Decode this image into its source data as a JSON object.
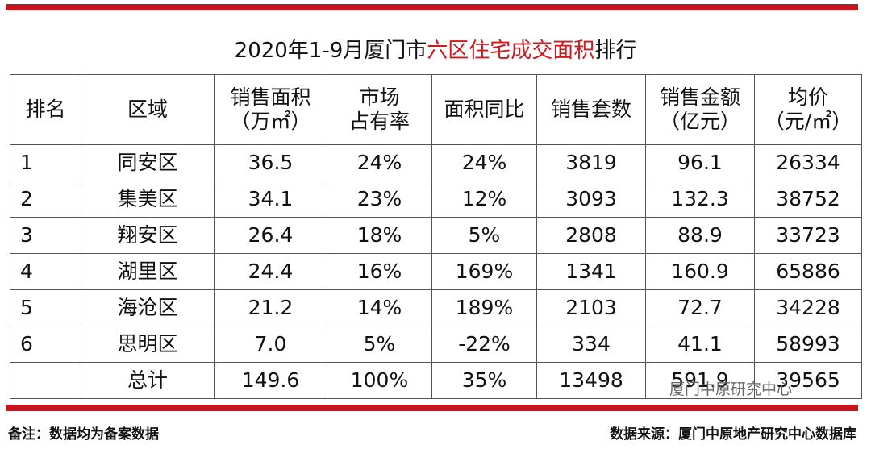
{
  "title": {
    "prefix": "2020年1-9月厦门市",
    "highlight": "六区住宅成交面积",
    "suffix": "排行"
  },
  "table": {
    "header": [
      [
        "排名"
      ],
      [
        "区域"
      ],
      [
        "销售面积",
        "（万㎡）"
      ],
      [
        "市场",
        "占有率"
      ],
      [
        "面积同比"
      ],
      [
        "销售套数"
      ],
      [
        "销售金额",
        "（亿元）"
      ],
      [
        "均价",
        "（元/㎡）"
      ]
    ],
    "rows": [
      [
        "1",
        "同安区",
        "36.5",
        "24%",
        "24%",
        "3819",
        "96.1",
        "26334"
      ],
      [
        "2",
        "集美区",
        "34.1",
        "23%",
        "12%",
        "3093",
        "132.3",
        "38752"
      ],
      [
        "3",
        "翔安区",
        "26.4",
        "18%",
        "5%",
        "2808",
        "88.9",
        "33723"
      ],
      [
        "4",
        "湖里区",
        "24.4",
        "16%",
        "169%",
        "1341",
        "160.9",
        "65886"
      ],
      [
        "5",
        "海沧区",
        "21.2",
        "14%",
        "189%",
        "2103",
        "72.7",
        "34228"
      ],
      [
        "6",
        "思明区",
        "7.0",
        "5%",
        "-22%",
        "334",
        "41.1",
        "58993"
      ]
    ],
    "total": [
      "总计",
      "149.6",
      "100%",
      "35%",
      "13498",
      "591.9",
      "39565"
    ]
  },
  "footer": {
    "note": "备注：数据均为备案数据",
    "source": "数据来源：厦门中原地产研究中心数据库"
  },
  "watermark": "厦门中原研究中心"
}
